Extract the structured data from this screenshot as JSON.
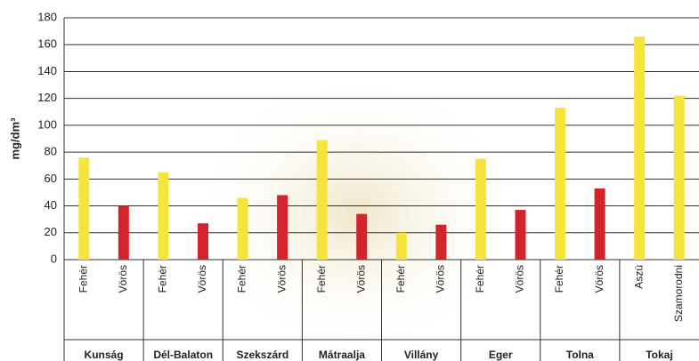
{
  "chart_data": {
    "type": "grouped-bar",
    "y_label": "mg/dm³",
    "ylim": [
      0,
      180
    ],
    "yticks": [
      0,
      20,
      40,
      60,
      80,
      100,
      120,
      140,
      160,
      180
    ],
    "grid": true,
    "groups": [
      {
        "name": "Kunság",
        "categories": [
          "Fehér",
          "Vörös"
        ],
        "values": [
          76,
          40
        ],
        "colors": [
          "#f6e43c",
          "#d3232b"
        ]
      },
      {
        "name": "Dél-Balaton",
        "categories": [
          "Fehér",
          "Vörös"
        ],
        "values": [
          65,
          27
        ],
        "colors": [
          "#f6e43c",
          "#d3232b"
        ]
      },
      {
        "name": "Szekszárd",
        "categories": [
          "Fehér",
          "Vörös"
        ],
        "values": [
          46,
          48
        ],
        "colors": [
          "#f6e43c",
          "#d3232b"
        ]
      },
      {
        "name": "Mátraalja",
        "categories": [
          "Fehér",
          "Vörös"
        ],
        "values": [
          89,
          34
        ],
        "colors": [
          "#f6e43c",
          "#d3232b"
        ]
      },
      {
        "name": "Villány",
        "categories": [
          "Fehér",
          "Vörös"
        ],
        "values": [
          20,
          26
        ],
        "colors": [
          "#f6e43c",
          "#d3232b"
        ]
      },
      {
        "name": "Eger",
        "categories": [
          "Fehér",
          "Vörös"
        ],
        "values": [
          75,
          37
        ],
        "colors": [
          "#f6e43c",
          "#d3232b"
        ]
      },
      {
        "name": "Tolna",
        "categories": [
          "Fehér",
          "Vörös"
        ],
        "values": [
          113,
          53
        ],
        "colors": [
          "#f6e43c",
          "#d3232b"
        ]
      },
      {
        "name": "Tokaj",
        "categories": [
          "Aszú",
          "Szamorodni"
        ],
        "values": [
          166,
          122
        ],
        "colors": [
          "#f6e43c",
          "#f6e43c"
        ]
      }
    ]
  }
}
